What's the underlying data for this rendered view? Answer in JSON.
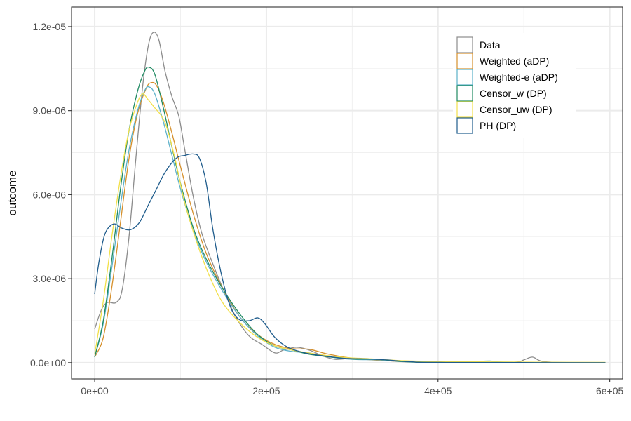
{
  "chart_data": {
    "type": "line",
    "title": "",
    "xlabel": "",
    "ylabel": "outcome",
    "xlim": [
      -27000,
      615000
    ],
    "ylim": [
      -5.8e-07,
      1.27e-05
    ],
    "x_ticks": [
      {
        "value": 0,
        "label": "0e+00"
      },
      {
        "value": 200000,
        "label": "2e+05"
      },
      {
        "value": 400000,
        "label": "4e+05"
      },
      {
        "value": 600000,
        "label": "6e+05"
      }
    ],
    "y_ticks": [
      {
        "value": 0,
        "label": "0.0e+00"
      },
      {
        "value": 3e-06,
        "label": "3.0e-06"
      },
      {
        "value": 6e-06,
        "label": "6.0e-06"
      },
      {
        "value": 9e-06,
        "label": "9.0e-06"
      },
      {
        "value": 1.2e-05,
        "label": "1.2e-05"
      }
    ],
    "grid": true,
    "legend_position": "top-right",
    "series": [
      {
        "name": "Data",
        "color": "#8c8c8c",
        "points": [
          [
            0,
            1.2e-06
          ],
          [
            8000,
            1.9e-06
          ],
          [
            15000,
            2.15e-06
          ],
          [
            25000,
            2.15e-06
          ],
          [
            32000,
            2.6e-06
          ],
          [
            40000,
            4.5e-06
          ],
          [
            48000,
            7.3e-06
          ],
          [
            56000,
            9.9e-06
          ],
          [
            63000,
            1.14e-05
          ],
          [
            69000,
            1.18e-05
          ],
          [
            75000,
            1.15e-05
          ],
          [
            82000,
            1.04e-05
          ],
          [
            90000,
            9.5e-06
          ],
          [
            98000,
            8.8e-06
          ],
          [
            105000,
            7.6e-06
          ],
          [
            115000,
            5.9e-06
          ],
          [
            125000,
            4.6e-06
          ],
          [
            138000,
            3.5e-06
          ],
          [
            150000,
            2.6e-06
          ],
          [
            165000,
            1.6e-06
          ],
          [
            180000,
            9.5e-07
          ],
          [
            195000,
            6.5e-07
          ],
          [
            210000,
            3.5e-07
          ],
          [
            220000,
            4.5e-07
          ],
          [
            235000,
            5.5e-07
          ],
          [
            250000,
            4.5e-07
          ],
          [
            265000,
            2.5e-07
          ],
          [
            280000,
            1.2e-07
          ],
          [
            300000,
            1.5e-07
          ],
          [
            330000,
            1e-07
          ],
          [
            360000,
            3e-08
          ],
          [
            400000,
            2e-08
          ],
          [
            450000,
            1e-08
          ],
          [
            490000,
            2e-08
          ],
          [
            500000,
            1e-07
          ],
          [
            510000,
            2e-07
          ],
          [
            520000,
            6e-08
          ],
          [
            540000,
            1e-08
          ],
          [
            595000,
            0
          ]
        ]
      },
      {
        "name": "Weighted (aDP)",
        "color": "#d6902c",
        "points": [
          [
            0,
            2e-07
          ],
          [
            10000,
            9e-07
          ],
          [
            20000,
            2.7e-06
          ],
          [
            30000,
            5e-06
          ],
          [
            40000,
            7.3e-06
          ],
          [
            50000,
            8.9e-06
          ],
          [
            60000,
            9.8e-06
          ],
          [
            66000,
            1e-05
          ],
          [
            72000,
            9.9e-06
          ],
          [
            80000,
            9.3e-06
          ],
          [
            90000,
            8.2e-06
          ],
          [
            100000,
            7e-06
          ],
          [
            115000,
            5.3e-06
          ],
          [
            130000,
            3.9e-06
          ],
          [
            150000,
            2.6e-06
          ],
          [
            170000,
            1.6e-06
          ],
          [
            190000,
            1e-06
          ],
          [
            210000,
            6.5e-07
          ],
          [
            230000,
            5e-07
          ],
          [
            250000,
            4.8e-07
          ],
          [
            270000,
            3.2e-07
          ],
          [
            300000,
            1.6e-07
          ],
          [
            340000,
            7e-08
          ],
          [
            400000,
            2e-08
          ],
          [
            500000,
            1e-08
          ],
          [
            595000,
            0
          ]
        ]
      },
      {
        "name": "Weighted-e (aDP)",
        "color": "#5bb0c9",
        "points": [
          [
            0,
            2e-07
          ],
          [
            10000,
            1.4e-06
          ],
          [
            20000,
            3.4e-06
          ],
          [
            30000,
            5.6e-06
          ],
          [
            40000,
            7.6e-06
          ],
          [
            50000,
            9e-06
          ],
          [
            58000,
            9.7e-06
          ],
          [
            63000,
            9.85e-06
          ],
          [
            70000,
            9.6e-06
          ],
          [
            80000,
            8.6e-06
          ],
          [
            90000,
            7.4e-06
          ],
          [
            100000,
            6.2e-06
          ],
          [
            115000,
            4.7e-06
          ],
          [
            130000,
            3.6e-06
          ],
          [
            150000,
            2.5e-06
          ],
          [
            170000,
            1.6e-06
          ],
          [
            190000,
            9.5e-07
          ],
          [
            210000,
            5.5e-07
          ],
          [
            230000,
            4e-07
          ],
          [
            250000,
            3.5e-07
          ],
          [
            270000,
            2.2e-07
          ],
          [
            300000,
            1.2e-07
          ],
          [
            330000,
            1e-07
          ],
          [
            360000,
            4e-08
          ],
          [
            400000,
            1e-08
          ],
          [
            440000,
            3e-08
          ],
          [
            460000,
            6e-08
          ],
          [
            480000,
            2e-08
          ],
          [
            595000,
            0
          ]
        ]
      },
      {
        "name": "Censor_w (DP)",
        "color": "#1f8a62",
        "points": [
          [
            0,
            2e-07
          ],
          [
            10000,
            1.5e-06
          ],
          [
            20000,
            3.7e-06
          ],
          [
            30000,
            6.2e-06
          ],
          [
            40000,
            8.3e-06
          ],
          [
            50000,
            9.7e-06
          ],
          [
            58000,
            1.04e-05
          ],
          [
            63000,
            1.055e-05
          ],
          [
            70000,
            1.03e-05
          ],
          [
            80000,
            9.1e-06
          ],
          [
            90000,
            7.7e-06
          ],
          [
            100000,
            6.4e-06
          ],
          [
            115000,
            4.8e-06
          ],
          [
            130000,
            3.7e-06
          ],
          [
            150000,
            2.6e-06
          ],
          [
            170000,
            1.7e-06
          ],
          [
            190000,
            1e-06
          ],
          [
            210000,
            6e-07
          ],
          [
            230000,
            4.5e-07
          ],
          [
            250000,
            3e-07
          ],
          [
            275000,
            2e-07
          ],
          [
            300000,
            1.3e-07
          ],
          [
            330000,
            1.2e-07
          ],
          [
            360000,
            4e-08
          ],
          [
            400000,
            1e-08
          ],
          [
            595000,
            0
          ]
        ]
      },
      {
        "name": "Censor_uw (DP)",
        "color": "#f2e04a",
        "points": [
          [
            0,
            3e-07
          ],
          [
            10000,
            2.2e-06
          ],
          [
            20000,
            4.5e-06
          ],
          [
            30000,
            6.6e-06
          ],
          [
            40000,
            8.3e-06
          ],
          [
            50000,
            9.3e-06
          ],
          [
            56000,
            9.6e-06
          ],
          [
            62000,
            9.4e-06
          ],
          [
            70000,
            9.1e-06
          ],
          [
            78000,
            8.8e-06
          ],
          [
            85000,
            8.3e-06
          ],
          [
            95000,
            7.1e-06
          ],
          [
            105000,
            5.7e-06
          ],
          [
            120000,
            4.2e-06
          ],
          [
            135000,
            3e-06
          ],
          [
            150000,
            2.1e-06
          ],
          [
            170000,
            1.4e-06
          ],
          [
            190000,
            9e-07
          ],
          [
            210000,
            6e-07
          ],
          [
            230000,
            4.5e-07
          ],
          [
            260000,
            3e-07
          ],
          [
            290000,
            1.9e-07
          ],
          [
            320000,
            1.4e-07
          ],
          [
            360000,
            7e-08
          ],
          [
            400000,
            4e-08
          ],
          [
            450000,
            3e-08
          ],
          [
            500000,
            2e-08
          ],
          [
            595000,
            1e-08
          ]
        ]
      },
      {
        "name": "PH (DP)",
        "color": "#1f5c8c",
        "points": [
          [
            0,
            2.45e-06
          ],
          [
            5000,
            3.6e-06
          ],
          [
            12000,
            4.6e-06
          ],
          [
            22000,
            4.95e-06
          ],
          [
            32000,
            4.8e-06
          ],
          [
            42000,
            4.75e-06
          ],
          [
            52000,
            5e-06
          ],
          [
            62000,
            5.6e-06
          ],
          [
            72000,
            6.2e-06
          ],
          [
            82000,
            6.8e-06
          ],
          [
            95000,
            7.3e-06
          ],
          [
            105000,
            7.4e-06
          ],
          [
            115000,
            7.45e-06
          ],
          [
            122000,
            7.3e-06
          ],
          [
            130000,
            6.4e-06
          ],
          [
            138000,
            4.7e-06
          ],
          [
            148000,
            3.1e-06
          ],
          [
            158000,
            2e-06
          ],
          [
            168000,
            1.55e-06
          ],
          [
            180000,
            1.5e-06
          ],
          [
            190000,
            1.6e-06
          ],
          [
            198000,
            1.4e-06
          ],
          [
            210000,
            9e-07
          ],
          [
            225000,
            5.5e-07
          ],
          [
            245000,
            3.5e-07
          ],
          [
            265000,
            2.5e-07
          ],
          [
            290000,
            1.6e-07
          ],
          [
            320000,
            1.3e-07
          ],
          [
            340000,
            1e-07
          ],
          [
            370000,
            3e-08
          ],
          [
            400000,
            1e-08
          ],
          [
            595000,
            0
          ]
        ]
      }
    ]
  }
}
